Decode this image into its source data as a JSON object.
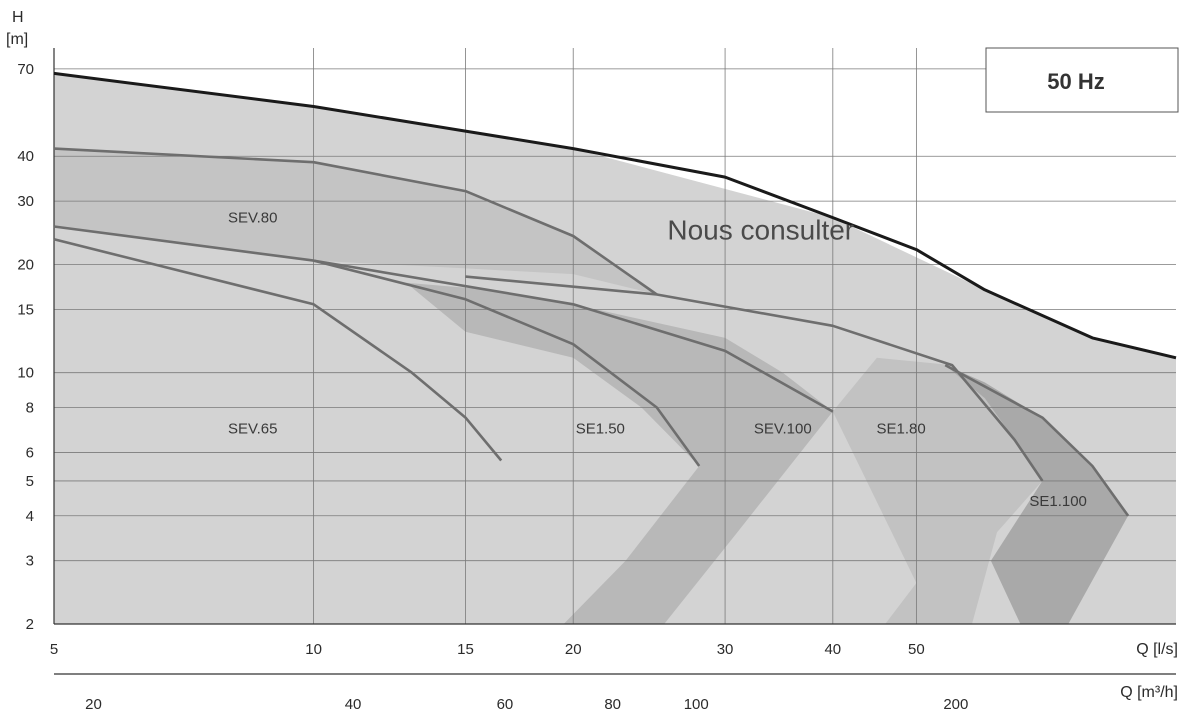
{
  "chart_data": {
    "type": "area",
    "title": "",
    "frequency_badge": "50 Hz",
    "y_axis": {
      "label_top": "H",
      "label_unit": "[m]",
      "scale": "log",
      "range": [
        2,
        80
      ],
      "ticks": [
        "2",
        "3",
        "4",
        "5",
        "6",
        "8",
        "10",
        "15",
        "20",
        "30",
        "40",
        "70"
      ]
    },
    "x_axis_primary": {
      "label": "Q [l/s]",
      "scale": "log",
      "range": [
        5,
        100
      ],
      "ticks": [
        "5",
        "10",
        "15",
        "20",
        "30",
        "40",
        "50"
      ]
    },
    "x_axis_secondary": {
      "label": "Q [m³/h]",
      "scale": "log",
      "ticks": [
        "20",
        "40",
        "60",
        "80",
        "100",
        "200"
      ]
    },
    "grid": true,
    "regions": [
      {
        "name": "Nous consulter",
        "fill": "#d3d3d3",
        "boundary": [
          [
            5,
            2
          ],
          [
            5,
            68
          ],
          [
            10,
            55
          ],
          [
            20,
            42
          ],
          [
            40,
            27
          ],
          [
            60,
            17
          ],
          [
            80,
            12.5
          ],
          [
            100,
            11
          ],
          [
            100,
            2
          ]
        ]
      },
      {
        "name": "SEV.80",
        "fill": "#c4c4c4",
        "boundary": [
          [
            5,
            42
          ],
          [
            10,
            38.5
          ],
          [
            15,
            32
          ],
          [
            20,
            24
          ],
          [
            25,
            16.5
          ],
          [
            20,
            18.8
          ],
          [
            15,
            19.5
          ],
          [
            10,
            20.5
          ],
          [
            5,
            25.5
          ]
        ]
      },
      {
        "name": "SE1.80",
        "fill": "#c2c2c2",
        "boundary": [
          [
            40,
            7.8
          ],
          [
            45,
            11
          ],
          [
            55,
            10.5
          ],
          [
            60,
            8.5
          ],
          [
            65,
            6.5
          ],
          [
            70,
            5
          ],
          [
            62,
            3.6
          ],
          [
            58,
            2
          ],
          [
            46,
            2
          ],
          [
            50,
            2.6
          ]
        ]
      },
      {
        "name": "SEV.100",
        "fill": "#b8b8b8",
        "boundary": [
          [
            12.8,
            17.8
          ],
          [
            16,
            17
          ],
          [
            20,
            15.5
          ],
          [
            30,
            12.5
          ],
          [
            35,
            10
          ],
          [
            40,
            7.8
          ],
          [
            31,
            3.6
          ],
          [
            25.5,
            2
          ],
          [
            19.5,
            2
          ],
          [
            23,
            3
          ],
          [
            28,
            5.5
          ],
          [
            24,
            8
          ],
          [
            20,
            11
          ],
          [
            15,
            13
          ]
        ]
      },
      {
        "name": "SE1.100",
        "fill": "#a9a9a9",
        "boundary": [
          [
            54,
            10.5
          ],
          [
            60,
            9.4
          ],
          [
            70,
            7.5
          ],
          [
            80,
            5.5
          ],
          [
            88,
            4
          ],
          [
            75,
            2
          ],
          [
            66,
            2
          ],
          [
            61,
            3
          ],
          [
            70,
            5
          ],
          [
            65,
            6.5
          ],
          [
            60,
            8.5
          ]
        ]
      }
    ],
    "curves": [
      {
        "name": "envelope",
        "points": [
          [
            5,
            68
          ],
          [
            10,
            55
          ],
          [
            20,
            42
          ],
          [
            30,
            35
          ],
          [
            40,
            27
          ],
          [
            50,
            22
          ],
          [
            60,
            17
          ],
          [
            80,
            12.5
          ],
          [
            100,
            11
          ]
        ]
      },
      {
        "name": "SEV.80",
        "points": [
          [
            5,
            42
          ],
          [
            10,
            38.5
          ],
          [
            15,
            32
          ],
          [
            20,
            24
          ],
          [
            25,
            16.5
          ]
        ]
      },
      {
        "name": "SEV.65",
        "points": [
          [
            5,
            23.5
          ],
          [
            10,
            15.5
          ],
          [
            13,
            10
          ],
          [
            15,
            7.5
          ],
          [
            16.5,
            5.7
          ]
        ]
      },
      {
        "name": "SE1.50",
        "points": [
          [
            10,
            20.5
          ],
          [
            15,
            16
          ],
          [
            20,
            12
          ],
          [
            25,
            8
          ],
          [
            28,
            5.5
          ]
        ]
      },
      {
        "name": "SEV.100",
        "points": [
          [
            5,
            25.5
          ],
          [
            10,
            20.5
          ],
          [
            20,
            15.5
          ],
          [
            30,
            11.5
          ],
          [
            40,
            7.8
          ]
        ]
      },
      {
        "name": "SE1.80",
        "points": [
          [
            15,
            18.5
          ],
          [
            25,
            16.5
          ],
          [
            40,
            13.5
          ],
          [
            55,
            10.5
          ],
          [
            65,
            6.5
          ],
          [
            70,
            5
          ]
        ]
      },
      {
        "name": "SE1.100",
        "points": [
          [
            54,
            10.5
          ],
          [
            70,
            7.5
          ],
          [
            80,
            5.5
          ],
          [
            88,
            4
          ]
        ]
      }
    ],
    "labels": [
      {
        "text": "SEV.80",
        "x": 8.5,
        "y": 27
      },
      {
        "text": "Nous consulter",
        "x": 33,
        "y": 25
      },
      {
        "text": "SEV.65",
        "x": 8.5,
        "y": 7
      },
      {
        "text": "SE1.50",
        "x": 21.5,
        "y": 7
      },
      {
        "text": "SEV.100",
        "x": 35,
        "y": 7
      },
      {
        "text": "SE1.80",
        "x": 48,
        "y": 7
      },
      {
        "text": "SE1.100",
        "x": 73,
        "y": 4.4
      }
    ]
  }
}
